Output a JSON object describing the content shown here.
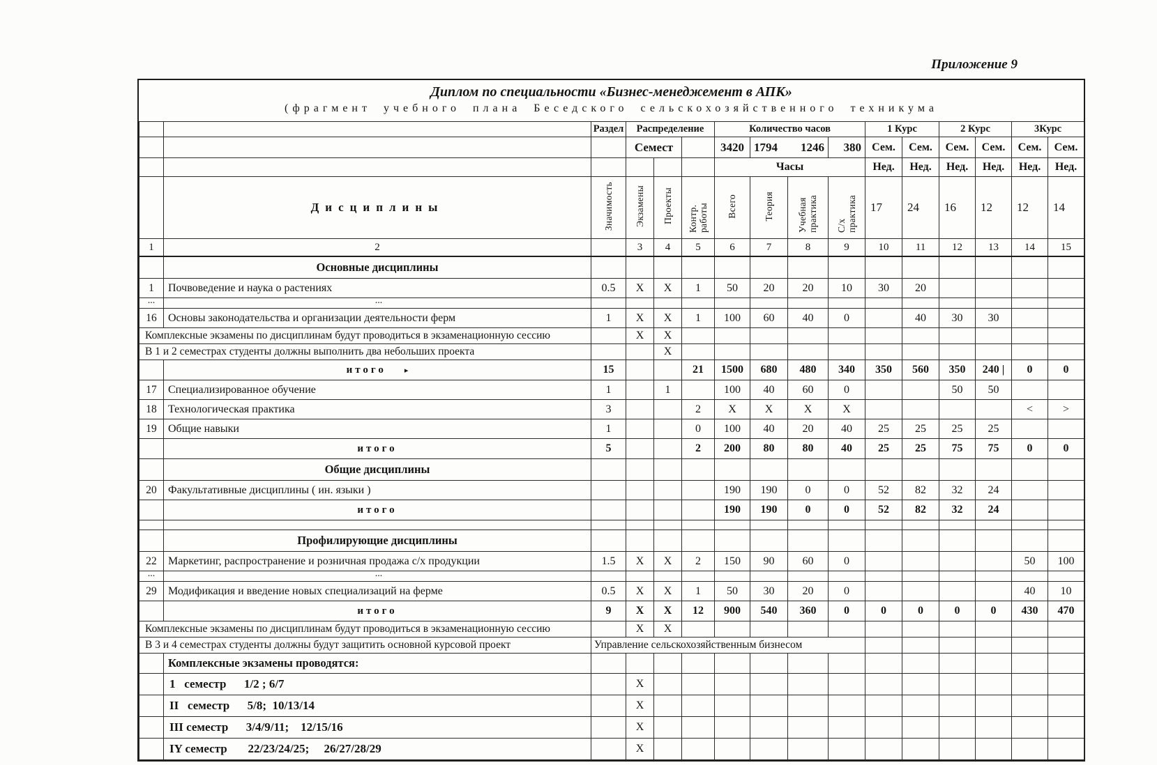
{
  "page": {
    "appendix": "Приложение 9"
  },
  "title": {
    "line1": "Диплом по специальности «Бизнес-менеджемент в АПК»",
    "line2": "(фрагмент учебного плана Беседского сельскохозяйственного техникума"
  },
  "header": {
    "razdel": "Раздел",
    "raspredelenie": "Распределение",
    "kolichestvo_chasov": "Количество часов",
    "kurs1": "1 Курс",
    "kurs2": "2 Курс",
    "kurs3": "3Курс",
    "semest": "Семест",
    "total_vsego": "3420",
    "total_teoria": "1794",
    "total_uch_praktika": "1246",
    "total_sx": "380",
    "sem": "Сем.",
    "ned": "Нед.",
    "chasy": "Часы",
    "disciplines": "Дисциплины",
    "rotated": [
      "Значимость",
      "Экзамены",
      "Проекты",
      "Контр. работы",
      "Всего",
      "Теория",
      "Учебная практика",
      "С/х практика"
    ],
    "weeks": [
      "17",
      "24",
      "16",
      "12",
      "12",
      "14"
    ],
    "col_numbers": [
      "1",
      "2",
      "3",
      "4",
      "5",
      "6",
      "7",
      "8",
      "9",
      "10",
      "11",
      "12",
      "13",
      "14",
      "15"
    ]
  },
  "rows": [
    {
      "type": "section",
      "name": "Основные дисциплины"
    },
    {
      "type": "item",
      "num": "1",
      "name": "Почвоведение и наука о растениях",
      "cells": [
        "0.5",
        "X",
        "X",
        "1",
        "50",
        "20",
        "20",
        "10",
        "30",
        "20",
        "",
        "",
        "",
        ""
      ]
    },
    {
      "type": "dots",
      "num": "...",
      "name": "..."
    },
    {
      "type": "item",
      "num": "16",
      "name": "Основы законодательства и организации деятельности ферм",
      "cells": [
        "1",
        "X",
        "X",
        "1",
        "100",
        "60",
        "40",
        "0",
        "",
        "40",
        "30",
        "30",
        "",
        ""
      ]
    },
    {
      "type": "note",
      "name": "Комплексные экзамены по дисциплинам будут проводиться в экзаменационную сессию",
      "cells": [
        "",
        "X",
        "X",
        "",
        "",
        "",
        "",
        "",
        "",
        "",
        "",
        "",
        "",
        ""
      ]
    },
    {
      "type": "note",
      "name": "В 1 и 2 семестрах студенты должны выполнить два небольших проекта",
      "cells": [
        "",
        "",
        "X",
        "",
        "",
        "",
        "",
        "",
        "",
        "",
        "",
        "",
        "",
        ""
      ]
    },
    {
      "type": "total",
      "name": "итого",
      "marker": "▸",
      "cells": [
        "15",
        "",
        "",
        "21",
        "1500",
        "680",
        "480",
        "340",
        "350",
        "560",
        "350",
        "240 |",
        "0",
        "0"
      ]
    },
    {
      "type": "item",
      "num": "17",
      "name": "Специализированное обучение",
      "cells": [
        "1",
        "",
        "1",
        "",
        "100",
        "40",
        "60",
        "0",
        "",
        "",
        "50",
        "50",
        "",
        ""
      ]
    },
    {
      "type": "item",
      "num": "18",
      "name": "Технологическая практика",
      "cells": [
        "3",
        "",
        "",
        "2",
        "X",
        "X",
        "X",
        "X",
        "",
        "",
        "",
        "",
        "<",
        ">"
      ]
    },
    {
      "type": "item",
      "num": "19",
      "name": "Общие навыки",
      "cells": [
        "1",
        "",
        "",
        "0",
        "100",
        "40",
        "20",
        "40",
        "25",
        "25",
        "25",
        "25",
        "",
        ""
      ]
    },
    {
      "type": "total",
      "name": "итого",
      "cells": [
        "5",
        "",
        "",
        "2",
        "200",
        "80",
        "80",
        "40",
        "25",
        "25",
        "75",
        "75",
        "0",
        "0"
      ]
    },
    {
      "type": "section",
      "name": "Общие дисциплины"
    },
    {
      "type": "item",
      "num": "20",
      "name": "Факультативные дисциплины ( ин. языки )",
      "cells": [
        "",
        "",
        "",
        "",
        "190",
        "190",
        "0",
        "0",
        "52",
        "82",
        "32",
        "24",
        "",
        ""
      ]
    },
    {
      "type": "total",
      "name": "итого",
      "cells": [
        "",
        "",
        "",
        "",
        "190",
        "190",
        "0",
        "0",
        "52",
        "82",
        "32",
        "24",
        "",
        ""
      ]
    },
    {
      "type": "empty"
    },
    {
      "type": "section",
      "name": "Профилирующие дисциплины"
    },
    {
      "type": "item",
      "num": "22",
      "name": "Маркетинг, распространение и розничная продажа с/х продукции",
      "cells": [
        "1.5",
        "X",
        "X",
        "2",
        "150",
        "90",
        "60",
        "0",
        "",
        "",
        "",
        "",
        "50",
        "100"
      ]
    },
    {
      "type": "dots",
      "num": "...",
      "name": "..."
    },
    {
      "type": "item",
      "num": "29",
      "name": "Модификация и введение новых специализаций на ферме",
      "cells": [
        "0.5",
        "X",
        "X",
        "1",
        "50",
        "30",
        "20",
        "0",
        "",
        "",
        "",
        "",
        "40",
        "10"
      ]
    },
    {
      "type": "total",
      "name": "итого",
      "cells": [
        "9",
        "X",
        "X",
        "12",
        "900",
        "540",
        "360",
        "0",
        "0",
        "0",
        "0",
        "0",
        "430",
        "470"
      ]
    },
    {
      "type": "note",
      "name": "Комплексные экзамены по дисциплинам будут проводиться в экзаменационную сессию",
      "cells": [
        "",
        "X",
        "X",
        "",
        "",
        "",
        "",
        "",
        "",
        "",
        "",
        "",
        "",
        ""
      ]
    },
    {
      "type": "note-wide",
      "name": "В 3 и 4 семестрах студенты должны будут защитить основной курсовой проект",
      "note": "Управление сельскохозяйственным  бизнесом"
    },
    {
      "type": "subhead",
      "name": "Комплексные экзамены проводятся:"
    },
    {
      "type": "semester",
      "name": "1   семестр      1/2 ; 6/7",
      "cells": [
        "",
        "X",
        "",
        "",
        "",
        "",
        "",
        "",
        "",
        "",
        "",
        "",
        "",
        ""
      ]
    },
    {
      "type": "semester",
      "name": "II   семестр      5/8;  10/13/14",
      "cells": [
        "",
        "X",
        "",
        "",
        "",
        "",
        "",
        "",
        "",
        "",
        "",
        "",
        "",
        ""
      ]
    },
    {
      "type": "semester",
      "name": "III семестр      3/4/9/11;    12/15/16",
      "cells": [
        "",
        "X",
        "",
        "",
        "",
        "",
        "",
        "",
        "",
        "",
        "",
        "",
        "",
        ""
      ]
    },
    {
      "type": "semester",
      "name": "IY семестр       22/23/24/25;     26/27/28/29",
      "cells": [
        "",
        "X",
        "",
        "",
        "",
        "",
        "",
        "",
        "",
        "",
        "",
        "",
        "",
        ""
      ]
    }
  ]
}
